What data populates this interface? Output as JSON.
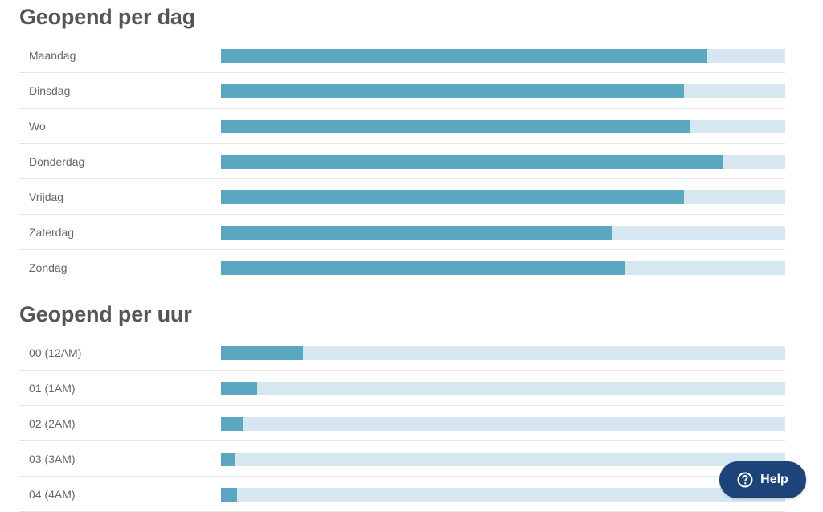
{
  "sections": [
    {
      "title": "Geopend per dag",
      "rows": [
        {
          "label": "Maandag",
          "percent": 86.2
        },
        {
          "label": "Dinsdag",
          "percent": 82.1
        },
        {
          "label": "Wo",
          "percent": 83.2
        },
        {
          "label": "Donderdag",
          "percent": 88.9
        },
        {
          "label": "Vrijdag",
          "percent": 82.1
        },
        {
          "label": "Zaterdag",
          "percent": 69.2
        },
        {
          "label": "Zondag",
          "percent": 71.7
        }
      ]
    },
    {
      "title": "Geopend per uur",
      "rows": [
        {
          "label": "00 (12AM)",
          "percent": 14.5
        },
        {
          "label": "01 (1AM)",
          "percent": 6.4
        },
        {
          "label": "02 (2AM)",
          "percent": 3.8
        },
        {
          "label": "03 (3AM)",
          "percent": 2.6
        },
        {
          "label": "04 (4AM)",
          "percent": 2.8
        }
      ]
    }
  ],
  "help_button": {
    "label": "Help",
    "icon": "question-circle-icon"
  },
  "colors": {
    "fill": "#5ba6c1",
    "track": "#d6e7f1",
    "help_bg": "#1c4478",
    "title": "#555555"
  },
  "chart_data": [
    {
      "type": "bar",
      "orientation": "horizontal",
      "title": "Geopend per dag",
      "categories": [
        "Maandag",
        "Dinsdag",
        "Wo",
        "Donderdag",
        "Vrijdag",
        "Zaterdag",
        "Zondag"
      ],
      "values": [
        86.2,
        82.1,
        83.2,
        88.9,
        82.1,
        69.2,
        71.7
      ],
      "xlabel": "",
      "ylabel": "",
      "xlim": [
        0,
        100
      ],
      "grid": false,
      "legend": null,
      "note": "Values are estimated fill percentages of the bar track; no numeric labels shown"
    },
    {
      "type": "bar",
      "orientation": "horizontal",
      "title": "Geopend per uur",
      "categories": [
        "00 (12AM)",
        "01 (1AM)",
        "02 (2AM)",
        "03 (3AM)",
        "04 (4AM)"
      ],
      "values": [
        14.5,
        6.4,
        3.8,
        2.6,
        2.8
      ],
      "xlabel": "",
      "ylabel": "",
      "xlim": [
        0,
        100
      ],
      "grid": false,
      "legend": null,
      "note": "Values are estimated fill percentages of the bar track; no numeric labels shown"
    }
  ]
}
